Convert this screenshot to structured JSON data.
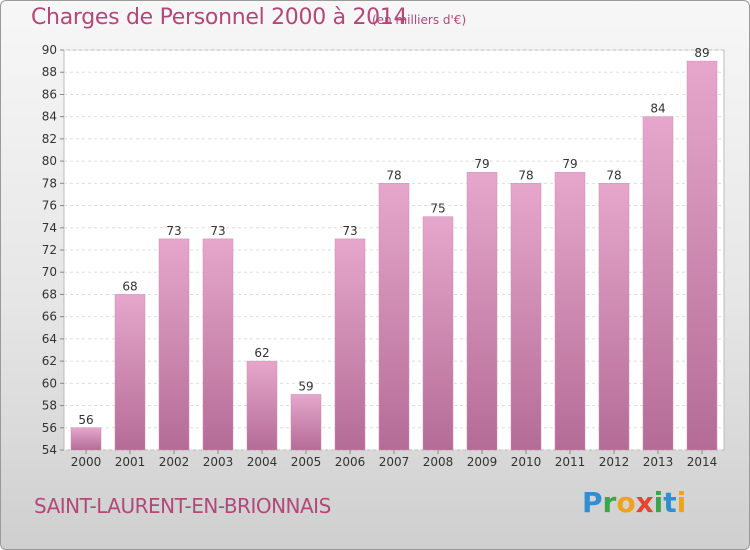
{
  "header": {
    "title": "Charges de Personnel 2000 à 2014",
    "subtitle": "(en milliers d'€)"
  },
  "footer": {
    "commune": "SAINT-LAURENT-EN-BRIONNAIS",
    "logo_letters": [
      {
        "char": "P",
        "color": "#2f8fd0"
      },
      {
        "char": "r",
        "color": "#3aa64b"
      },
      {
        "char": "o",
        "color": "#f0a21d"
      },
      {
        "char": "x",
        "color": "#e14631"
      },
      {
        "char": "i",
        "color": "#3aa64b"
      },
      {
        "char": "t",
        "color": "#2f8fd0"
      },
      {
        "char": "i",
        "color": "#f0a21d"
      }
    ]
  },
  "colors": {
    "accent": "#b4477a",
    "bar_top": "#e6a7cc",
    "bar_bottom": "#b46c96"
  },
  "chart_data": {
    "type": "bar",
    "categories": [
      "2000",
      "2001",
      "2002",
      "2003",
      "2004",
      "2005",
      "2006",
      "2007",
      "2008",
      "2009",
      "2010",
      "2011",
      "2012",
      "2013",
      "2014"
    ],
    "values": [
      56,
      68,
      73,
      73,
      62,
      59,
      73,
      78,
      75,
      79,
      78,
      79,
      78,
      84,
      89
    ],
    "ylim": [
      54,
      90
    ],
    "yticks": [
      54,
      56,
      58,
      60,
      62,
      64,
      66,
      68,
      70,
      72,
      74,
      76,
      78,
      80,
      82,
      84,
      86,
      88,
      90
    ],
    "grid": true,
    "data_labels": true
  }
}
